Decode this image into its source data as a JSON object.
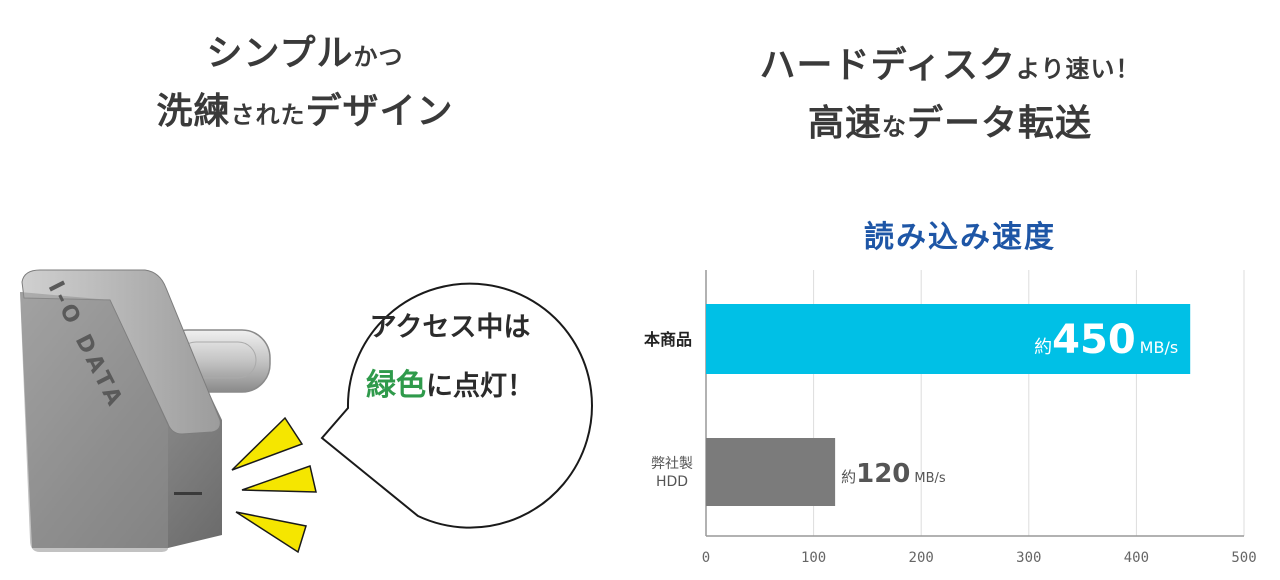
{
  "left_headline": {
    "line1_big": "シンプル",
    "line1_small": "かつ",
    "line2_big_a": "洗練",
    "line2_small": "された",
    "line2_big_b": "デザイン"
  },
  "right_headline": {
    "line1_big": "ハードディスク",
    "line1_small": "より速い！",
    "line2_big_a": "高速",
    "line2_small": "な",
    "line2_big_b": "データ転送"
  },
  "device": {
    "brand": "I-O DATA"
  },
  "bubble": {
    "line1": "アクセス中は",
    "line2_highlight": "緑色",
    "line2_rest": "に点灯！"
  },
  "colors": {
    "product_bar": "#00c0e6",
    "hdd_bar": "#7b7b7b",
    "title_blue": "#1e56a6",
    "highlight_green": "#2f9a4b",
    "light_yellow": "#f5e600"
  },
  "chart_data": {
    "type": "bar",
    "orientation": "horizontal",
    "title": "読み込み速度",
    "categories": [
      "本商品",
      "弊社製\nHDD"
    ],
    "values": [
      450,
      120
    ],
    "value_labels": [
      {
        "prefix": "約",
        "number": "450",
        "unit": "MB/s"
      },
      {
        "prefix": "約",
        "number": "120",
        "unit": "MB/s"
      }
    ],
    "xlim": [
      0,
      500
    ],
    "xticks": [
      0,
      100,
      200,
      300,
      400,
      500
    ],
    "grid": true,
    "legend": "none"
  }
}
